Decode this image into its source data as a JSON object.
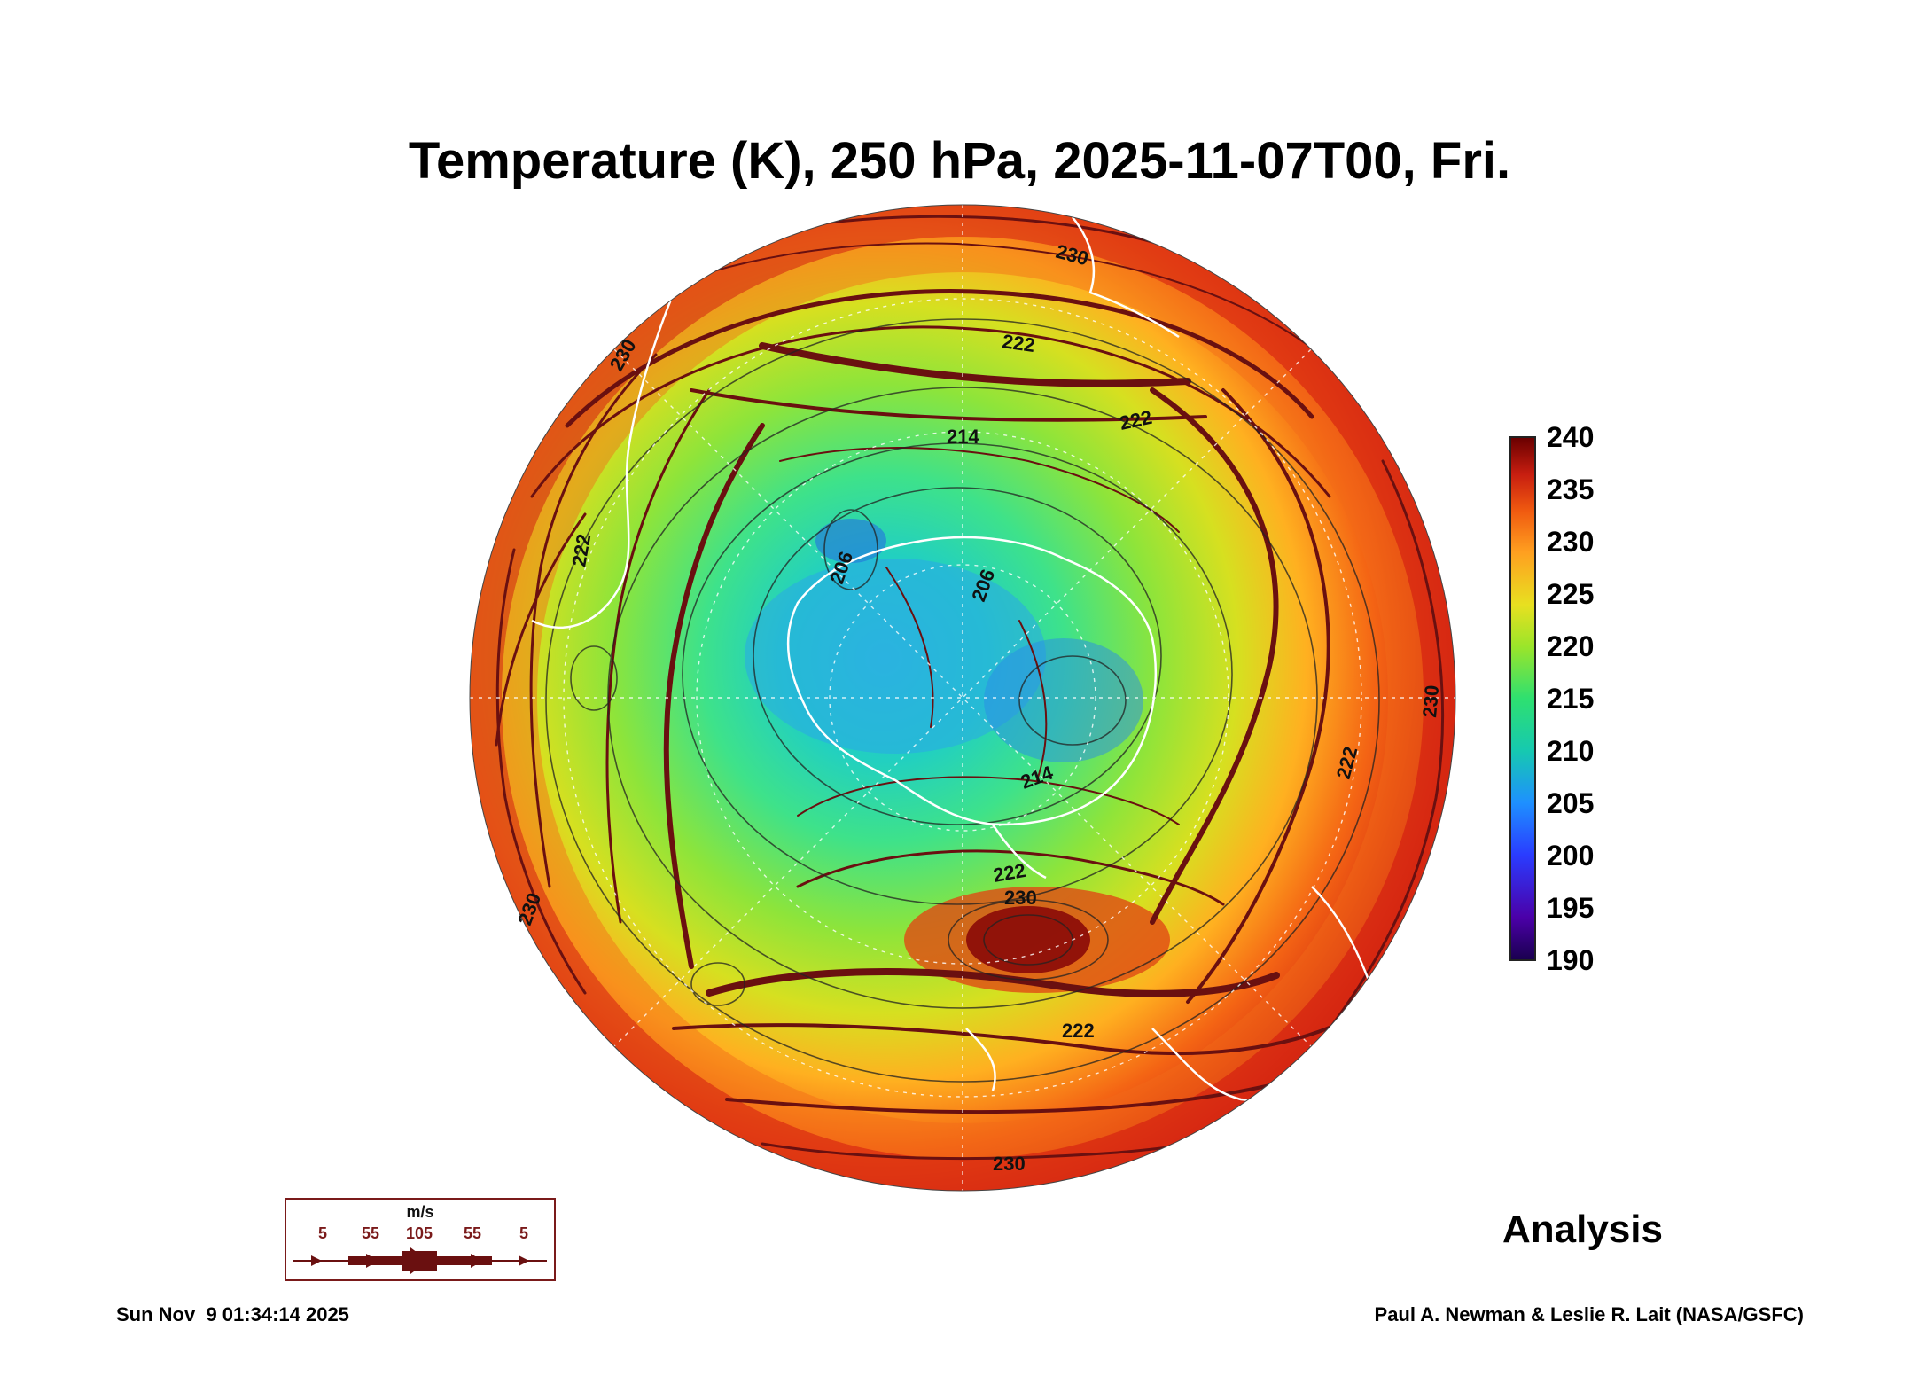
{
  "title": "Temperature (K), 250 hPa, 2025-11-07T00, Fri.",
  "colorbar": {
    "labels": [
      "240",
      "235",
      "230",
      "225",
      "220",
      "215",
      "210",
      "205",
      "200",
      "195",
      "190"
    ],
    "min": 190,
    "max": 240,
    "colors": [
      "#1a0050",
      "#2a3cff",
      "#1e90ff",
      "#16c9b0",
      "#2ee070",
      "#9be52a",
      "#e8e020",
      "#ffa020",
      "#f05a10",
      "#c81e10",
      "#6a0000"
    ]
  },
  "contour_labels": [
    "206",
    "206",
    "214",
    "214",
    "222",
    "222",
    "222",
    "222",
    "222",
    "222",
    "230",
    "230",
    "230",
    "230",
    "230",
    "230"
  ],
  "product_label": "Analysis",
  "wind_legend": {
    "unit": "m/s",
    "speeds": [
      "5",
      "55",
      "105",
      "55",
      "5"
    ]
  },
  "footer": {
    "timestamp": "Sun Nov  9 01:34:14 2025",
    "credit": "Paul A. Newman & Leslie R. Lait (NASA/GSFC)"
  }
}
